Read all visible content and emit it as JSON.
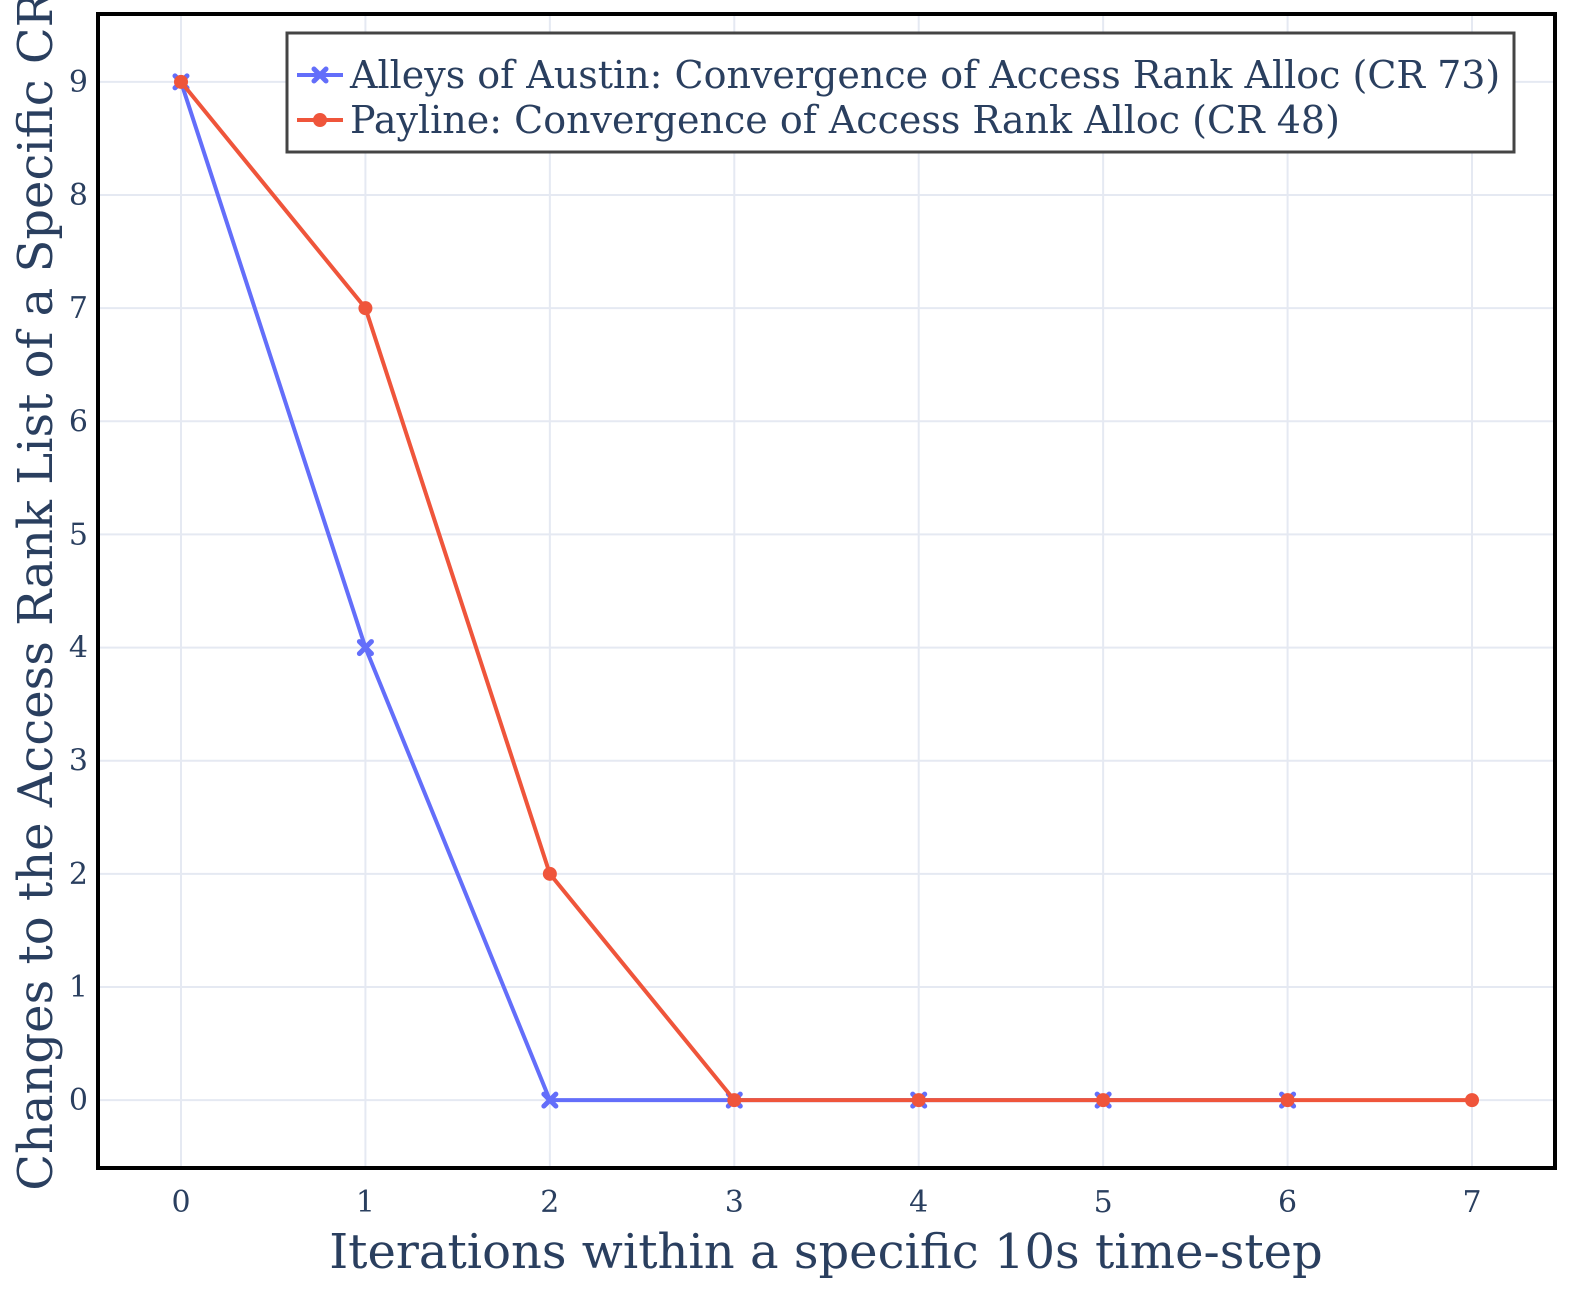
{
  "chart_data": {
    "type": "line",
    "title": "",
    "xlabel": "Iterations within a specific 10s time-step",
    "ylabel": "Changes to the Access Rank List of a Specific CR",
    "x": [
      0,
      1,
      2,
      3,
      4,
      5,
      6,
      7
    ],
    "xlim": [
      -0.45,
      7.45
    ],
    "ylim": [
      -0.6,
      9.6
    ],
    "xticks": [
      0,
      1,
      2,
      3,
      4,
      5,
      6,
      7
    ],
    "yticks": [
      0,
      1,
      2,
      3,
      4,
      5,
      6,
      7,
      8,
      9
    ],
    "grid": true,
    "legend_position": "top-right",
    "series": [
      {
        "name": "Alleys of Austin: Convergence of Access Rank Alloc (CR 73)",
        "x": [
          0,
          1,
          2,
          3,
          4,
          5,
          6
        ],
        "values": [
          9,
          4,
          0,
          0,
          0,
          0,
          0
        ],
        "color": "#636efa",
        "marker": "x"
      },
      {
        "name": "Payline: Convergence of Access Rank Alloc (CR 48)",
        "x": [
          0,
          1,
          2,
          3,
          4,
          5,
          6,
          7
        ],
        "values": [
          9,
          7,
          2,
          0,
          0,
          0,
          0,
          0
        ],
        "color": "#ef553b",
        "marker": "circle"
      }
    ]
  }
}
